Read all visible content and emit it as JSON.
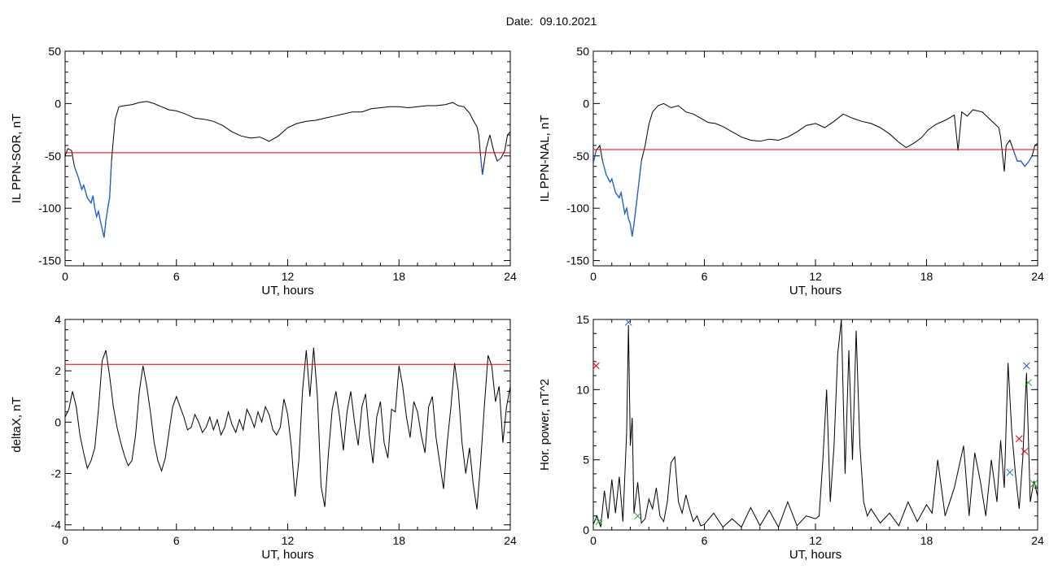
{
  "header": {
    "label": "Date:",
    "value": "09.10.2021"
  },
  "chart_data": [
    {
      "id": "ppn-sor",
      "type": "line",
      "xlabel": "UT, hours",
      "ylabel": "IL PPN-SOR, nT",
      "xlim": [
        0,
        24
      ],
      "ylim": [
        -155,
        50
      ],
      "xticks": [
        0,
        6,
        12,
        18,
        24
      ],
      "yticks": [
        -150,
        -100,
        -50,
        0,
        50
      ],
      "threshold": -47,
      "colors": {
        "line": "#000000",
        "below_threshold": "#1f5fd0",
        "threshold": "#e00000"
      },
      "series": [
        {
          "x": [
            0,
            0.15,
            0.35,
            0.5,
            0.7,
            0.9,
            1.0,
            1.2,
            1.4,
            1.5,
            1.6,
            1.7,
            1.8,
            1.9,
            2.0,
            2.1,
            2.2,
            2.3,
            2.4,
            2.5,
            2.55,
            2.7,
            2.9,
            3.2,
            3.6,
            4.0,
            4.4,
            4.8,
            5.2,
            5.6,
            6.0,
            6.5,
            7.0,
            7.5,
            8.0,
            8.5,
            9.0,
            9.5,
            10.0,
            10.5,
            11.0,
            11.5,
            12.0,
            12.5,
            13.0,
            13.5,
            14.0,
            14.5,
            15.0,
            15.5,
            16.0,
            16.5,
            17.0,
            17.5,
            18.0,
            18.5,
            19.0,
            19.5,
            20.0,
            20.5,
            20.9,
            21.2,
            21.5,
            21.8,
            22.0,
            22.2,
            22.3,
            22.4,
            22.5,
            22.7,
            22.9,
            23.1,
            23.3,
            23.5,
            23.7,
            23.85,
            24.0
          ],
          "y": [
            -50,
            -43,
            -45,
            -60,
            -70,
            -82,
            -78,
            -90,
            -95,
            -88,
            -100,
            -108,
            -103,
            -112,
            -120,
            -128,
            -112,
            -100,
            -90,
            -55,
            -45,
            -15,
            -3,
            -2,
            -1,
            1,
            2,
            0,
            -3,
            -6,
            -7,
            -10,
            -14,
            -15,
            -17,
            -21,
            -27,
            -31,
            -33,
            -32,
            -36,
            -31,
            -23,
            -19,
            -17,
            -16,
            -14,
            -12,
            -10,
            -8,
            -8,
            -5,
            -4,
            -3,
            -3,
            -4,
            -3,
            -2,
            -2,
            -1,
            1,
            -2,
            -3,
            -9,
            -16,
            -22,
            -30,
            -50,
            -68,
            -43,
            -30,
            -45,
            -55,
            -52,
            -45,
            -30,
            -27
          ]
        }
      ]
    },
    {
      "id": "ppn-nal",
      "type": "line",
      "xlabel": "UT, hours",
      "ylabel": "IL PPN-NAL, nT",
      "xlim": [
        0,
        24
      ],
      "ylim": [
        -155,
        50
      ],
      "xticks": [
        0,
        6,
        12,
        18,
        24
      ],
      "yticks": [
        -150,
        -100,
        -50,
        0,
        50
      ],
      "threshold": -44,
      "colors": {
        "line": "#000000",
        "below_threshold": "#1f5fd0",
        "threshold": "#e00000"
      },
      "series": [
        {
          "x": [
            0,
            0.15,
            0.35,
            0.5,
            0.7,
            0.9,
            1.0,
            1.2,
            1.4,
            1.5,
            1.6,
            1.7,
            1.8,
            1.9,
            2.0,
            2.1,
            2.2,
            2.3,
            2.4,
            2.6,
            2.8,
            3.0,
            3.2,
            3.5,
            3.8,
            4.2,
            4.6,
            5.0,
            5.4,
            5.8,
            6.2,
            6.6,
            7.0,
            7.5,
            8.0,
            8.5,
            9.0,
            9.5,
            10.0,
            10.5,
            11.0,
            11.5,
            12.0,
            12.5,
            13.0,
            13.5,
            14.0,
            14.5,
            15.0,
            15.5,
            16.0,
            16.5,
            16.9,
            17.3,
            17.7,
            18.1,
            18.5,
            19.0,
            19.5,
            19.7,
            19.9,
            20.2,
            20.5,
            21.0,
            21.3,
            21.6,
            21.9,
            22.0,
            22.2,
            22.3,
            22.5,
            22.7,
            22.9,
            23.1,
            23.3,
            23.5,
            23.7,
            23.85,
            24.0
          ],
          "y": [
            -57,
            -45,
            -40,
            -55,
            -68,
            -75,
            -72,
            -85,
            -90,
            -85,
            -95,
            -105,
            -100,
            -110,
            -115,
            -127,
            -115,
            -100,
            -85,
            -55,
            -40,
            -20,
            -8,
            -2,
            0,
            -4,
            -2,
            -8,
            -10,
            -14,
            -18,
            -19,
            -22,
            -27,
            -32,
            -35,
            -36,
            -34,
            -35,
            -32,
            -27,
            -21,
            -19,
            -23,
            -17,
            -10,
            -14,
            -17,
            -19,
            -23,
            -29,
            -37,
            -42,
            -38,
            -33,
            -25,
            -20,
            -16,
            -11,
            -45,
            -8,
            -12,
            -6,
            -8,
            -13,
            -18,
            -23,
            -32,
            -65,
            -40,
            -35,
            -45,
            -55,
            -55,
            -60,
            -56,
            -50,
            -40,
            -38
          ]
        }
      ]
    },
    {
      "id": "deltax",
      "type": "line",
      "xlabel": "UT, hours",
      "ylabel": "deltaX, nT",
      "xlim": [
        0,
        24
      ],
      "ylim": [
        -4.2,
        4.0
      ],
      "xticks": [
        0,
        6,
        12,
        18,
        24
      ],
      "yticks": [
        -4,
        -2,
        0,
        2,
        4
      ],
      "threshold": 2.25,
      "colors": {
        "line": "#000000",
        "threshold": "#e00000"
      },
      "series": [
        {
          "x": [
            0,
            0.2,
            0.4,
            0.6,
            0.8,
            1.0,
            1.2,
            1.4,
            1.6,
            1.8,
            2.0,
            2.2,
            2.4,
            2.6,
            2.8,
            3.0,
            3.2,
            3.4,
            3.6,
            3.8,
            4.0,
            4.2,
            4.4,
            4.6,
            4.8,
            5.0,
            5.2,
            5.4,
            5.6,
            5.8,
            6.0,
            6.2,
            6.4,
            6.6,
            6.8,
            7.0,
            7.2,
            7.4,
            7.6,
            7.8,
            8.0,
            8.2,
            8.4,
            8.6,
            8.8,
            9.0,
            9.2,
            9.4,
            9.6,
            9.8,
            10.0,
            10.2,
            10.4,
            10.6,
            10.8,
            11.0,
            11.2,
            11.4,
            11.6,
            11.8,
            12.0,
            12.2,
            12.4,
            12.6,
            12.8,
            13.0,
            13.2,
            13.4,
            13.6,
            13.8,
            14.0,
            14.2,
            14.4,
            14.6,
            14.8,
            15.0,
            15.2,
            15.4,
            15.6,
            15.8,
            16.0,
            16.2,
            16.4,
            16.6,
            16.8,
            17.0,
            17.2,
            17.4,
            17.6,
            17.8,
            18.0,
            18.2,
            18.4,
            18.6,
            18.8,
            19.0,
            19.2,
            19.4,
            19.6,
            19.8,
            20.0,
            20.2,
            20.4,
            20.6,
            20.8,
            21.0,
            21.2,
            21.4,
            21.6,
            21.8,
            22.0,
            22.2,
            22.4,
            22.6,
            22.8,
            23.0,
            23.2,
            23.4,
            23.6,
            23.8,
            24.0
          ],
          "y": [
            0.2,
            0.5,
            1.2,
            0.6,
            -0.5,
            -1.2,
            -1.8,
            -1.5,
            -1.0,
            0.5,
            2.4,
            2.8,
            1.8,
            0.6,
            -0.2,
            -0.8,
            -1.3,
            -1.7,
            -1.5,
            -0.5,
            1.2,
            2.2,
            1.4,
            0.4,
            -0.8,
            -1.5,
            -1.9,
            -1.4,
            -0.4,
            0.6,
            1.0,
            0.6,
            0.2,
            -0.3,
            -0.2,
            0.3,
            0.0,
            -0.4,
            -0.2,
            0.2,
            -0.3,
            0.1,
            -0.5,
            -0.2,
            0.4,
            -0.1,
            -0.4,
            0.1,
            -0.3,
            0.5,
            0.2,
            -0.2,
            0.4,
            0.0,
            0.6,
            0.3,
            -0.3,
            -0.5,
            -0.2,
            0.9,
            0.3,
            -1.0,
            -2.9,
            -1.5,
            1.2,
            2.8,
            1.0,
            2.9,
            1.0,
            -2.5,
            -3.3,
            -1.2,
            0.5,
            1.2,
            0.2,
            -1.1,
            0.4,
            1.2,
            0.0,
            -0.9,
            0.6,
            1.1,
            -0.5,
            -1.6,
            0.2,
            0.8,
            -0.8,
            -1.4,
            0.5,
            0.4,
            2.2,
            1.4,
            0.2,
            -0.6,
            0.8,
            0.4,
            -0.5,
            -1.2,
            0.6,
            1.0,
            -0.6,
            -1.6,
            -2.6,
            -0.8,
            0.6,
            2.3,
            1.2,
            -0.8,
            -2.0,
            -1.0,
            -2.4,
            -3.4,
            -1.6,
            0.6,
            2.6,
            2.2,
            0.8,
            1.4,
            -0.8,
            0.6,
            1.4
          ]
        }
      ]
    },
    {
      "id": "hor-power",
      "type": "line",
      "xlabel": "UT, hours",
      "ylabel": "Hor. power, nT^2",
      "xlim": [
        0,
        24
      ],
      "ylim": [
        0,
        15
      ],
      "xticks": [
        0,
        6,
        12,
        18,
        24
      ],
      "yticks": [
        0,
        5,
        10,
        15
      ],
      "colors": {
        "line": "#000000"
      },
      "series": [
        {
          "x": [
            0,
            0.2,
            0.4,
            0.6,
            0.8,
            1.0,
            1.2,
            1.4,
            1.6,
            1.8,
            1.9,
            2.0,
            2.1,
            2.2,
            2.4,
            2.6,
            2.8,
            3.0,
            3.2,
            3.4,
            3.6,
            3.8,
            4.0,
            4.2,
            4.4,
            4.6,
            4.8,
            5.0,
            5.2,
            5.4,
            5.6,
            5.8,
            6.0,
            6.5,
            7.0,
            7.5,
            8.0,
            8.5,
            9.0,
            9.5,
            10.0,
            10.5,
            11.0,
            11.5,
            12.0,
            12.2,
            12.4,
            12.6,
            12.8,
            13.0,
            13.2,
            13.4,
            13.6,
            13.8,
            14.0,
            14.2,
            14.4,
            14.6,
            14.8,
            15.0,
            15.5,
            16.0,
            16.5,
            17.0,
            17.5,
            18.0,
            18.3,
            18.6,
            19.0,
            19.5,
            20.0,
            20.3,
            20.6,
            20.9,
            21.2,
            21.5,
            21.8,
            22.0,
            22.2,
            22.4,
            22.6,
            22.8,
            23.0,
            23.2,
            23.4,
            23.6,
            23.8,
            24.0
          ],
          "y": [
            0.4,
            1.0,
            0.2,
            2.8,
            0.8,
            3.6,
            1.2,
            3.8,
            0.6,
            7.0,
            14.6,
            6.0,
            8.0,
            1.2,
            3.4,
            0.5,
            0.8,
            2.2,
            1.5,
            3.0,
            1.0,
            0.6,
            2.0,
            4.8,
            5.2,
            2.0,
            1.2,
            2.5,
            1.5,
            0.6,
            1.0,
            0.3,
            0.4,
            1.2,
            0.2,
            0.8,
            0.2,
            1.6,
            0.3,
            1.4,
            0.2,
            2.0,
            0.3,
            1.0,
            0.8,
            1.0,
            5.0,
            10.0,
            2.0,
            6.0,
            12.5,
            15.0,
            4.0,
            12.8,
            5.0,
            14.2,
            6.0,
            2.0,
            1.0,
            1.5,
            0.5,
            1.2,
            0.3,
            2.0,
            0.6,
            1.8,
            1.2,
            5.0,
            1.0,
            3.0,
            6.0,
            1.0,
            5.5,
            3.5,
            1.0,
            5.0,
            2.0,
            6.4,
            3.0,
            11.9,
            7.0,
            4.0,
            1.5,
            5.2,
            11.2,
            2.0,
            3.5,
            2.4
          ]
        }
      ],
      "markers": [
        {
          "x": 0.15,
          "y": 11.7,
          "color": "#e00000",
          "symbol": "x"
        },
        {
          "x": 0.3,
          "y": 0.6,
          "color": "#2fa02f",
          "symbol": "x"
        },
        {
          "x": 1.9,
          "y": 14.8,
          "color": "#1f5fd0",
          "symbol": "x"
        },
        {
          "x": 2.4,
          "y": 1.0,
          "color": "#2fa02f",
          "symbol": "x"
        },
        {
          "x": 22.5,
          "y": 4.1,
          "color": "#1f5fd0",
          "symbol": "x"
        },
        {
          "x": 23.0,
          "y": 6.5,
          "color": "#e00000",
          "symbol": "x"
        },
        {
          "x": 23.3,
          "y": 5.6,
          "color": "#e00000",
          "symbol": "x"
        },
        {
          "x": 23.4,
          "y": 11.7,
          "color": "#1f5fd0",
          "symbol": "x"
        },
        {
          "x": 23.5,
          "y": 10.5,
          "color": "#2fa02f",
          "symbol": "x"
        },
        {
          "x": 23.8,
          "y": 3.3,
          "color": "#2fa02f",
          "symbol": "x"
        }
      ]
    }
  ]
}
